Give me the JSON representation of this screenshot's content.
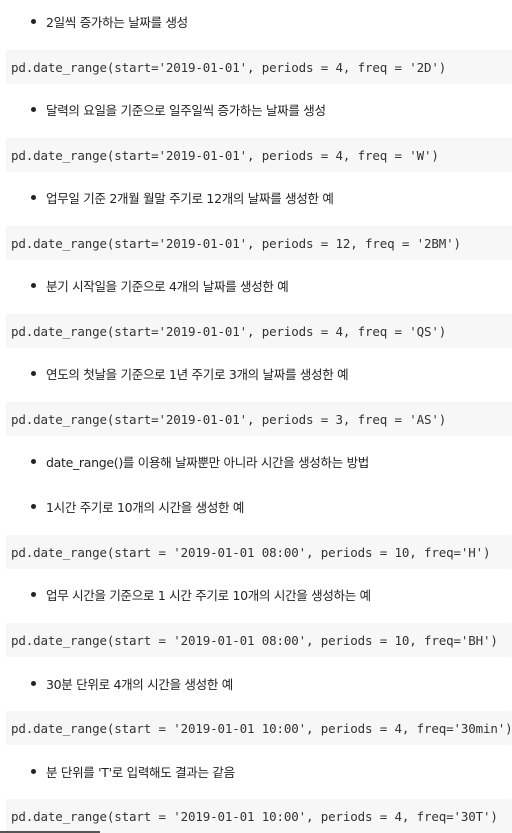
{
  "items": [
    {
      "bullet": "2일씩 증가하는 날짜를 생성",
      "code": "pd.date_range(start='2019-01-01', periods = 4, freq = '2D')"
    },
    {
      "bullet": "달력의 요일을 기준으로 일주일씩 증가하는 날짜를 생성",
      "code": "pd.date_range(start='2019-01-01', periods = 4, freq = 'W')"
    },
    {
      "bullet": "업무일 기준 2개월 월말 주기로 12개의 날짜를 생성한 예",
      "code": "pd.date_range(start='2019-01-01', periods = 12, freq = '2BM')"
    },
    {
      "bullet": "분기 시작일을 기준으로 4개의 날짜를 생성한 예",
      "code": "pd.date_range(start='2019-01-01', periods = 4, freq = 'QS')"
    },
    {
      "bullet": "연도의 첫날을 기준으로 1년 주기로 3개의 날짜를 생성한 예",
      "code": "pd.date_range(start='2019-01-01', periods = 3, freq = 'AS')"
    },
    {
      "bullet": "date_range()를 이용해 날짜뿐만 아니라 시간을 생성하는 방법",
      "code": null
    },
    {
      "bullet": "1시간 주기로 10개의 시간을 생성한 예",
      "code": "pd.date_range(start = '2019-01-01 08:00', periods = 10, freq='H')"
    },
    {
      "bullet": "업무 시간을 기준으로 1 시간 주기로 10개의 시간을 생성하는 예",
      "code": "pd.date_range(start = '2019-01-01 08:00', periods = 10, freq='BH')"
    },
    {
      "bullet": "30분 단위로 4개의 시간을 생성한 예",
      "code": "pd.date_range(start = '2019-01-01 10:00', periods = 4, freq='30min')"
    },
    {
      "bullet": "분 단위를 'T'로 입력해도 결과는 같음",
      "code": "pd.date_range(start = '2019-01-01 10:00', periods = 4, freq='30T')"
    }
  ]
}
